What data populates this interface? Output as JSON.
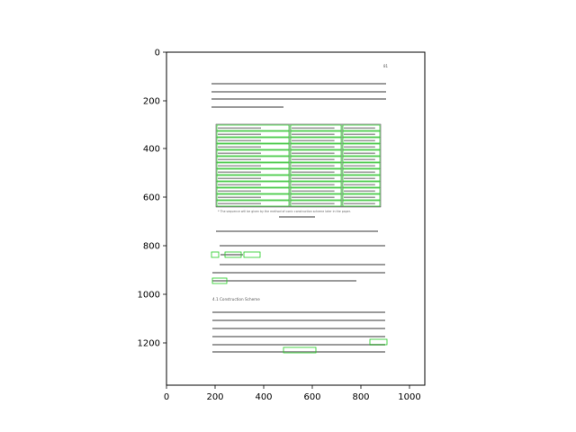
{
  "axes": {
    "x_ticks": [
      "0",
      "200",
      "400",
      "600",
      "800",
      "1000"
    ],
    "y_ticks": [
      "0",
      "200",
      "400",
      "600",
      "800",
      "1000",
      "1200"
    ]
  },
  "document": {
    "page_number": "81",
    "table_footnote": "* The sequence will be given by the method of conic construction scheme later in the paper.",
    "section_heading": "4.1   Construction Scheme"
  },
  "colors": {
    "page_border": "#000000",
    "box_outline": "#22cc22",
    "text_line": "#9a9a9a",
    "axis": "#000000"
  }
}
